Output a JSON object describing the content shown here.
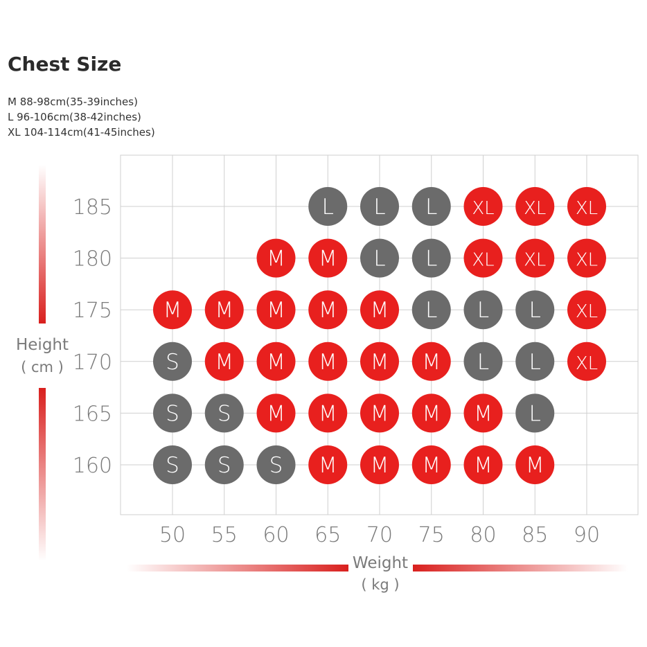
{
  "header": {
    "title": "Chest Size",
    "notes": [
      "M 88-98cm(35-39inches)",
      "L 96-106cm(38-42inches)",
      "XL 104-114cm(41-45inches)"
    ]
  },
  "chart_data": {
    "type": "table",
    "xlabel_line1": "Weight",
    "xlabel_line2": "( kg )",
    "ylabel_line1": "Height",
    "ylabel_line2": "( cm )",
    "x": [
      50,
      55,
      60,
      65,
      70,
      75,
      80,
      85,
      90
    ],
    "y": [
      185,
      180,
      175,
      170,
      165,
      160
    ],
    "cells": [
      [
        null,
        null,
        null,
        "L",
        "L",
        "L",
        "XL",
        "XL",
        "XL"
      ],
      [
        null,
        null,
        "M",
        "M",
        "L",
        "L",
        "XL",
        "XL",
        "XL"
      ],
      [
        "M",
        "M",
        "M",
        "M",
        "M",
        "L",
        "L",
        "L",
        "XL"
      ],
      [
        "S",
        "M",
        "M",
        "M",
        "M",
        "M",
        "L",
        "L",
        "XL"
      ],
      [
        "S",
        "S",
        "M",
        "M",
        "M",
        "M",
        "M",
        "L",
        null
      ],
      [
        "S",
        "S",
        "S",
        "M",
        "M",
        "M",
        "M",
        "M",
        null
      ]
    ],
    "colors": {
      "M": "#e8201e",
      "XL": "#e8201e",
      "S": "#6b6b6b",
      "L": "#6b6b6b",
      "grid": "#cfcfcf",
      "axis_text": "#7a7a7a",
      "accent": "#d9201e"
    }
  }
}
